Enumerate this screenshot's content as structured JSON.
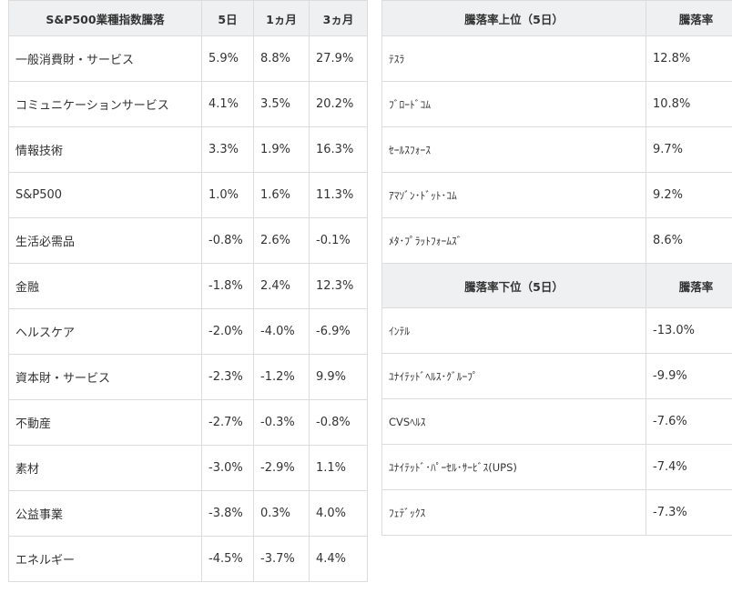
{
  "sector_table": {
    "headers": [
      "S&P500業種指数騰落",
      "5日",
      "1ヵ月",
      "3ヵ月"
    ],
    "rows": [
      {
        "name": "一般消費財・サービス",
        "d5": "5.9%",
        "m1": "8.8%",
        "m3": "27.9%"
      },
      {
        "name": "コミュニケーションサービス",
        "d5": "4.1%",
        "m1": "3.5%",
        "m3": "20.2%"
      },
      {
        "name": "情報技術",
        "d5": "3.3%",
        "m1": "1.9%",
        "m3": "16.3%"
      },
      {
        "name": "S&P500",
        "d5": "1.0%",
        "m1": "1.6%",
        "m3": "11.3%"
      },
      {
        "name": "生活必需品",
        "d5": "-0.8%",
        "m1": "2.6%",
        "m3": "-0.1%"
      },
      {
        "name": "金融",
        "d5": "-1.8%",
        "m1": "2.4%",
        "m3": "12.3%"
      },
      {
        "name": "ヘルスケア",
        "d5": "-2.0%",
        "m1": "-4.0%",
        "m3": "-6.9%"
      },
      {
        "name": "資本財・サービス",
        "d5": "-2.3%",
        "m1": "-1.2%",
        "m3": "9.9%"
      },
      {
        "name": "不動産",
        "d5": "-2.7%",
        "m1": "-0.3%",
        "m3": "-0.8%"
      },
      {
        "name": "素材",
        "d5": "-3.0%",
        "m1": "-2.9%",
        "m3": "1.1%"
      },
      {
        "name": "公益事業",
        "d5": "-3.8%",
        "m1": "0.3%",
        "m3": "4.0%"
      },
      {
        "name": "エネルギー",
        "d5": "-4.5%",
        "m1": "-3.7%",
        "m3": "4.4%"
      }
    ]
  },
  "top_table": {
    "headers": [
      "騰落率上位（5日）",
      "騰落率"
    ],
    "rows": [
      {
        "name": "ﾃｽﾗ",
        "value": "12.8%"
      },
      {
        "name": "ﾌﾞﾛｰﾄﾞｺﾑ",
        "value": "10.8%"
      },
      {
        "name": "ｾｰﾙｽﾌｫｰｽ",
        "value": "9.7%"
      },
      {
        "name": "ｱﾏｿﾞﾝ･ﾄﾞｯﾄ･ｺﾑ",
        "value": "9.2%"
      },
      {
        "name": "ﾒﾀ･ﾌﾟﾗｯﾄﾌｫｰﾑｽﾞ",
        "value": "8.6%"
      }
    ]
  },
  "bottom_table": {
    "headers": [
      "騰落率下位（5日）",
      "騰落率"
    ],
    "rows": [
      {
        "name": "ｲﾝﾃﾙ",
        "value": "-13.0%"
      },
      {
        "name": "ﾕﾅｲﾃｯﾄﾞﾍﾙｽ･ｸﾞﾙｰﾌﾟ",
        "value": "-9.9%"
      },
      {
        "name": "CVSﾍﾙｽ",
        "value": "-7.6%"
      },
      {
        "name": "ﾕﾅｲﾃｯﾄﾞ･ﾊﾟｰｾﾙ･ｻｰﾋﾞｽ(UPS)",
        "value": "-7.4%"
      },
      {
        "name": "ﾌｪﾃﾞｯｸｽ",
        "value": "-7.3%"
      }
    ]
  }
}
